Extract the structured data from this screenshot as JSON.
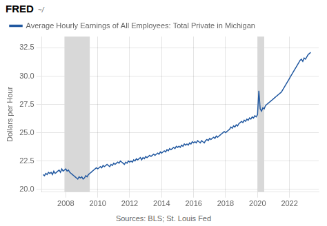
{
  "chart_data": {
    "type": "line",
    "ylabel": "Dollars per Hour",
    "annotations": [
      "FRED",
      "~/",
      "Sources: BLS; St. Louis Fed"
    ],
    "legend": "top",
    "grid": true,
    "xlim": [
      2006.5,
      2023.83
    ],
    "xticks": [
      2008,
      2010,
      2012,
      2014,
      2016,
      2018,
      2020,
      2022
    ],
    "ylim": [
      19.75,
      33.5
    ],
    "yticks": [
      {
        "value": 20.0,
        "label": "20.0"
      },
      22.5,
      {
        "value": 25.0,
        "label": "25.0"
      },
      27.5,
      {
        "value": 30.0,
        "label": "30.0"
      },
      32.5
    ],
    "shaded_regions": [
      {
        "start": 2007.917,
        "end": 2009.5,
        "color": "#d8d8d8"
      },
      {
        "start": 2020.0,
        "end": 2020.42,
        "color": "#d8d8d8"
      }
    ],
    "x": [
      2006.583,
      2006.667,
      2006.75,
      2006.833,
      2006.917,
      2007.0,
      2007.083,
      2007.167,
      2007.25,
      2007.333,
      2007.417,
      2007.5,
      2007.583,
      2007.667,
      2007.75,
      2007.833,
      2007.917,
      2008.0,
      2008.083,
      2008.167,
      2008.25,
      2008.333,
      2008.417,
      2008.5,
      2008.583,
      2008.667,
      2008.75,
      2008.833,
      2008.917,
      2009.0,
      2009.083,
      2009.167,
      2009.25,
      2009.333,
      2009.417,
      2009.5,
      2009.583,
      2009.667,
      2009.75,
      2009.833,
      2009.917,
      2010.0,
      2010.083,
      2010.167,
      2010.25,
      2010.333,
      2010.417,
      2010.5,
      2010.583,
      2010.667,
      2010.75,
      2010.833,
      2010.917,
      2011.0,
      2011.083,
      2011.167,
      2011.25,
      2011.333,
      2011.417,
      2011.5,
      2011.583,
      2011.667,
      2011.75,
      2011.833,
      2011.917,
      2012.0,
      2012.083,
      2012.167,
      2012.25,
      2012.333,
      2012.417,
      2012.5,
      2012.583,
      2012.667,
      2012.75,
      2012.833,
      2012.917,
      2013.0,
      2013.083,
      2013.167,
      2013.25,
      2013.333,
      2013.417,
      2013.5,
      2013.583,
      2013.667,
      2013.75,
      2013.833,
      2013.917,
      2014.0,
      2014.083,
      2014.167,
      2014.25,
      2014.333,
      2014.417,
      2014.5,
      2014.583,
      2014.667,
      2014.75,
      2014.833,
      2014.917,
      2015.0,
      2015.083,
      2015.167,
      2015.25,
      2015.333,
      2015.417,
      2015.5,
      2015.583,
      2015.667,
      2015.75,
      2015.833,
      2015.917,
      2016.0,
      2016.083,
      2016.167,
      2016.25,
      2016.333,
      2016.417,
      2016.5,
      2016.583,
      2016.667,
      2016.75,
      2016.833,
      2016.917,
      2017.0,
      2017.083,
      2017.167,
      2017.25,
      2017.333,
      2017.417,
      2017.5,
      2017.583,
      2017.667,
      2017.75,
      2017.833,
      2017.917,
      2018.0,
      2018.083,
      2018.167,
      2018.25,
      2018.333,
      2018.417,
      2018.5,
      2018.583,
      2018.667,
      2018.75,
      2018.833,
      2018.917,
      2019.0,
      2019.083,
      2019.167,
      2019.25,
      2019.333,
      2019.417,
      2019.5,
      2019.583,
      2019.667,
      2019.75,
      2019.833,
      2019.917,
      2020.0,
      2020.083,
      2020.167,
      2020.25,
      2020.333,
      2020.417,
      2020.5,
      2020.583,
      2020.667,
      2020.75,
      2020.833,
      2020.917,
      2021.0,
      2021.083,
      2021.167,
      2021.25,
      2021.333,
      2021.417,
      2021.5,
      2021.583,
      2021.667,
      2021.75,
      2021.833,
      2021.917,
      2022.0,
      2022.083,
      2022.167,
      2022.25,
      2022.333,
      2022.417,
      2022.5,
      2022.583,
      2022.667,
      2022.75,
      2022.833,
      2022.917,
      2023.0,
      2023.083,
      2023.167,
      2023.25,
      2023.333
    ],
    "series": [
      {
        "name": "Average Hourly Earnings of All Employees: Total Private in Michigan",
        "color": "#2158a0",
        "values": [
          21.3,
          21.2,
          21.4,
          21.3,
          21.5,
          21.4,
          21.5,
          21.3,
          21.6,
          21.4,
          21.5,
          21.6,
          21.7,
          21.5,
          21.8,
          21.6,
          21.7,
          21.8,
          21.6,
          21.7,
          21.5,
          21.4,
          21.3,
          21.2,
          21.1,
          21.0,
          20.9,
          21.1,
          21.0,
          21.1,
          20.9,
          21.0,
          21.2,
          21.1,
          21.3,
          21.4,
          21.5,
          21.6,
          21.7,
          21.8,
          21.9,
          21.8,
          21.9,
          22.0,
          21.9,
          22.1,
          22.0,
          22.1,
          22.2,
          22.1,
          22.0,
          22.2,
          22.1,
          22.3,
          22.2,
          22.3,
          22.4,
          22.3,
          22.5,
          22.4,
          22.3,
          22.2,
          22.4,
          22.3,
          22.5,
          22.4,
          22.5,
          22.4,
          22.6,
          22.5,
          22.7,
          22.6,
          22.7,
          22.8,
          22.6,
          22.8,
          22.7,
          22.9,
          22.8,
          22.9,
          23.0,
          22.9,
          23.0,
          23.1,
          23.0,
          23.1,
          23.2,
          23.1,
          23.3,
          23.2,
          23.3,
          23.4,
          23.3,
          23.5,
          23.4,
          23.6,
          23.5,
          23.6,
          23.7,
          23.6,
          23.8,
          23.7,
          23.8,
          23.7,
          23.9,
          23.8,
          24.0,
          23.9,
          24.0,
          23.9,
          24.1,
          24.0,
          24.2,
          24.1,
          24.2,
          24.1,
          24.3,
          24.2,
          24.1,
          24.3,
          24.2,
          24.1,
          24.3,
          24.4,
          24.3,
          24.5,
          24.4,
          24.5,
          24.6,
          24.5,
          24.7,
          24.6,
          24.7,
          24.8,
          24.9,
          25.0,
          25.1,
          25.0,
          25.1,
          25.2,
          25.3,
          25.5,
          25.4,
          25.6,
          25.5,
          25.7,
          25.6,
          25.8,
          25.9,
          26.0,
          25.9,
          26.1,
          26.0,
          26.2,
          26.1,
          26.3,
          26.2,
          26.4,
          26.3,
          26.5,
          26.4,
          26.6,
          28.7,
          27.1,
          26.9,
          27.2,
          27.1,
          27.4,
          27.5,
          27.6,
          27.7,
          27.8,
          27.9,
          28.0,
          28.1,
          28.2,
          28.3,
          28.4,
          28.5,
          28.6,
          28.8,
          29.0,
          29.2,
          29.4,
          29.6,
          29.8,
          30.0,
          30.2,
          30.4,
          30.6,
          30.8,
          31.0,
          31.2,
          31.4,
          31.5,
          31.3,
          31.6,
          31.5,
          31.7,
          31.9,
          32.0,
          32.1
        ]
      }
    ]
  }
}
